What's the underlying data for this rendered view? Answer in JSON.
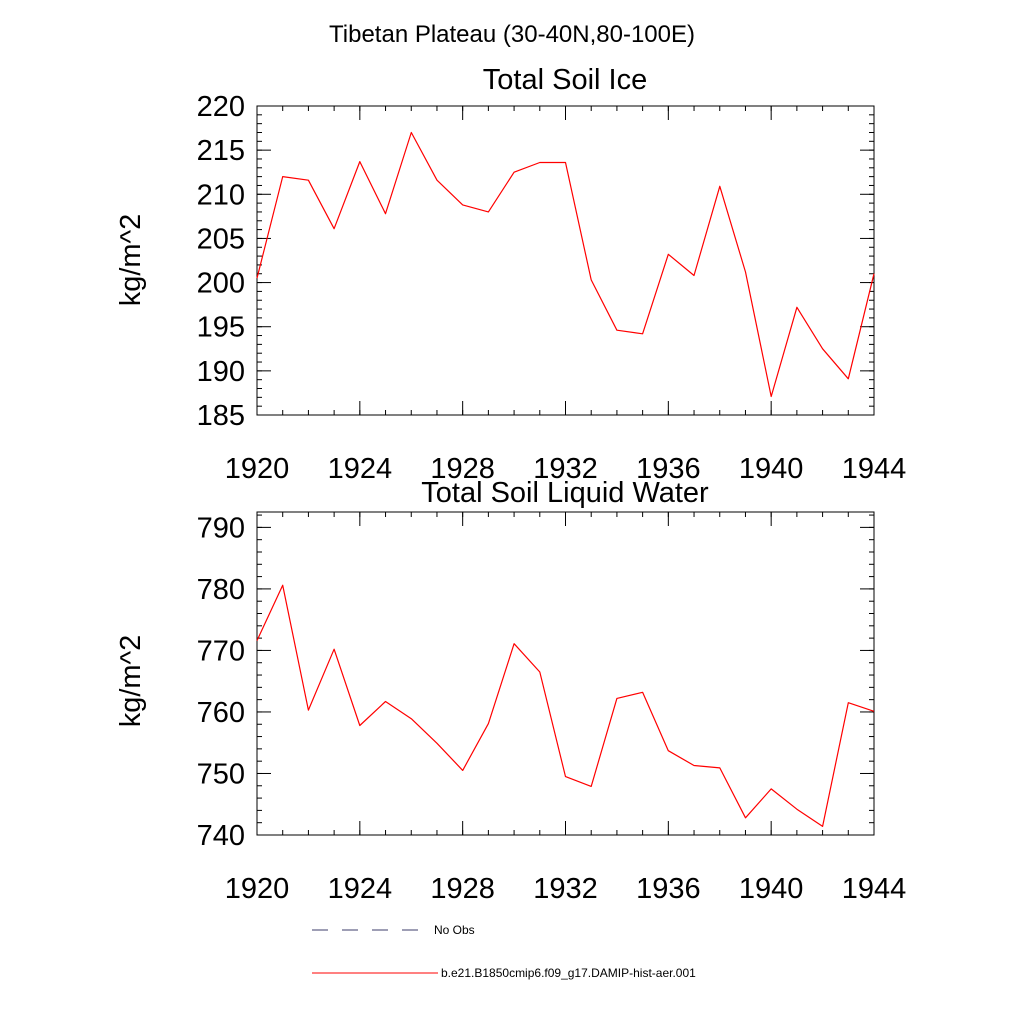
{
  "figure": {
    "title": "Tibetan Plateau (30-40N,80-100E)"
  },
  "legend": {
    "entries": [
      {
        "label": "No Obs",
        "color": "#3d3d6b",
        "style": "dashed"
      },
      {
        "label": "b.e21.B1850cmip6.f09_g17.DAMIP-hist-aer.001",
        "color": "#ff0000",
        "style": "solid"
      }
    ]
  },
  "chart_data": [
    {
      "type": "line",
      "title": "Total Soil Ice",
      "xlabel": "",
      "ylabel": "kg/m^2",
      "xlim": [
        1920,
        1944
      ],
      "ylim": [
        185,
        220
      ],
      "xticks": [
        1920,
        1924,
        1928,
        1932,
        1936,
        1940,
        1944
      ],
      "yticks": [
        185,
        190,
        195,
        200,
        205,
        210,
        215,
        220
      ],
      "yminor": 1,
      "xminor": 1,
      "grid": false,
      "series": [
        {
          "color": "#ff0000",
          "x": [
            1920,
            1921,
            1922,
            1923,
            1924,
            1925,
            1926,
            1927,
            1928,
            1929,
            1930,
            1931,
            1932,
            1933,
            1934,
            1935,
            1936,
            1937,
            1938,
            1939,
            1940,
            1941,
            1942,
            1943,
            1944
          ],
          "y": [
            200.5,
            212.0,
            211.6,
            206.1,
            213.7,
            207.8,
            217.0,
            211.6,
            208.8,
            208.0,
            212.5,
            213.6,
            213.6,
            200.3,
            194.6,
            194.2,
            203.2,
            200.8,
            210.9,
            201.2,
            187.1,
            197.2,
            192.5,
            189.1,
            201.0
          ]
        }
      ]
    },
    {
      "type": "line",
      "title": "Total Soil Liquid Water",
      "xlabel": "",
      "ylabel": "kg/m^2",
      "xlim": [
        1920,
        1944
      ],
      "ylim": [
        740,
        792.5
      ],
      "xticks": [
        1920,
        1924,
        1928,
        1932,
        1936,
        1940,
        1944
      ],
      "yticks": [
        740,
        750,
        760,
        770,
        780,
        790
      ],
      "yminor": 2,
      "xminor": 1,
      "grid": false,
      "series": [
        {
          "color": "#ff0000",
          "x": [
            1920,
            1921,
            1922,
            1923,
            1924,
            1925,
            1926,
            1927,
            1928,
            1929,
            1930,
            1931,
            1932,
            1933,
            1934,
            1935,
            1936,
            1937,
            1938,
            1939,
            1940,
            1941,
            1942,
            1943,
            1944
          ],
          "y": [
            771.6,
            780.6,
            760.3,
            770.2,
            757.8,
            761.7,
            758.9,
            754.9,
            750.5,
            758.1,
            771.1,
            766.5,
            749.5,
            747.9,
            762.2,
            763.2,
            753.7,
            751.3,
            750.9,
            742.8,
            747.5,
            744.2,
            741.4,
            761.5,
            760.1
          ]
        }
      ]
    }
  ]
}
